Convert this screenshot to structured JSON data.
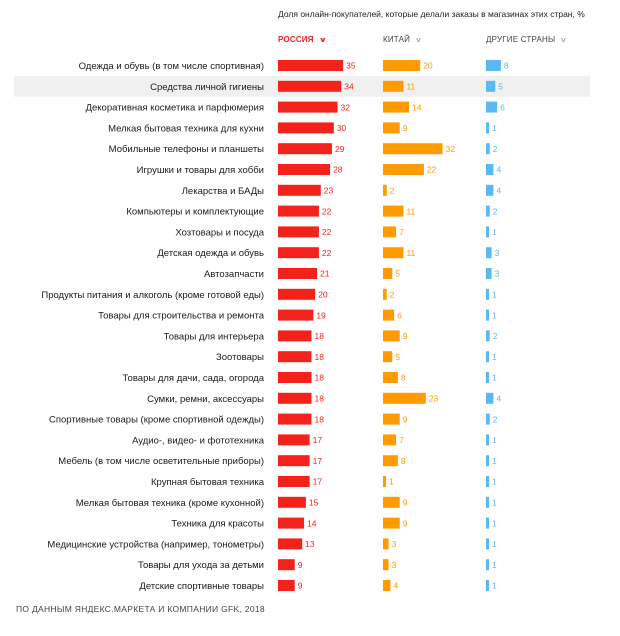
{
  "header": {
    "subtitle": "Доля онлайн-покупателей, которые делали заказы в магазинах этих стран, %",
    "columns": [
      {
        "label": "РОССИЯ",
        "active": true,
        "chevron": "chevron-down-icon"
      },
      {
        "label": "КИТАЙ",
        "active": false,
        "chevron": "chevron-down-icon"
      },
      {
        "label": "ДРУГИЕ СТРАНЫ",
        "active": false,
        "chevron": "chevron-down-icon"
      }
    ]
  },
  "footer": {
    "source": "ПО ДАННЫМ ЯНДЕКС.МАРКЕТА И КОМПАНИИ GFK, 2018"
  },
  "colors": {
    "russia": "#f5221b",
    "china": "#ff9b00",
    "other": "#5ab9f2",
    "highlight_row": "#f0f0f0"
  },
  "highlighted_row": "Средства личной гигиены",
  "chart_data": {
    "type": "bar",
    "orientation": "horizontal",
    "categories": [
      "Одежда и обувь (в том числе спортивная)",
      "Средства личной гигиены",
      "Декоративная косметика и парфюмерия",
      "Мелкая бытовая техника для кухни",
      "Мобильные телефоны и планшеты",
      "Игрушки и товары для хобби",
      "Лекарства и БАДы",
      "Компьютеры и комплектующие",
      "Хозтовары и посуда",
      "Детская одежда и обувь",
      "Автозапчасти",
      "Продукты питания и алкоголь (кроме готовой еды)",
      "Товары для строительства и ремонта",
      "Товары для интерьера",
      "Зоотовары",
      "Товары для дачи, сада, огорода",
      "Сумки, ремни, аксессуары",
      "Спортивные товары (кроме спортивной одежды)",
      "Аудио-, видео- и фототехника",
      "Мебель (в том числе осветительные приборы)",
      "Крупная бытовая техника",
      "Мелкая бытовая техника (кроме кухонной)",
      "Техника для красоты",
      "Медицинские устройства (например, тонометры)",
      "Товары для ухода за детьми",
      "Детские спортивные товары"
    ],
    "series": [
      {
        "name": "РОССИЯ",
        "values": [
          35,
          34,
          32,
          30,
          29,
          28,
          23,
          22,
          22,
          22,
          21,
          20,
          19,
          18,
          18,
          18,
          18,
          18,
          17,
          17,
          17,
          15,
          14,
          13,
          9,
          9
        ]
      },
      {
        "name": "КИТАЙ",
        "values": [
          20,
          11,
          14,
          9,
          32,
          22,
          2,
          11,
          7,
          11,
          5,
          2,
          6,
          9,
          5,
          8,
          23,
          9,
          7,
          8,
          1,
          9,
          9,
          3,
          3,
          4
        ]
      },
      {
        "name": "ДРУГИЕ СТРАНЫ",
        "values": [
          8,
          5,
          6,
          1,
          2,
          4,
          4,
          2,
          1,
          3,
          3,
          1,
          1,
          2,
          1,
          1,
          4,
          2,
          1,
          1,
          1,
          1,
          1,
          1,
          1,
          1
        ]
      }
    ],
    "sorted_by": "РОССИЯ"
  }
}
